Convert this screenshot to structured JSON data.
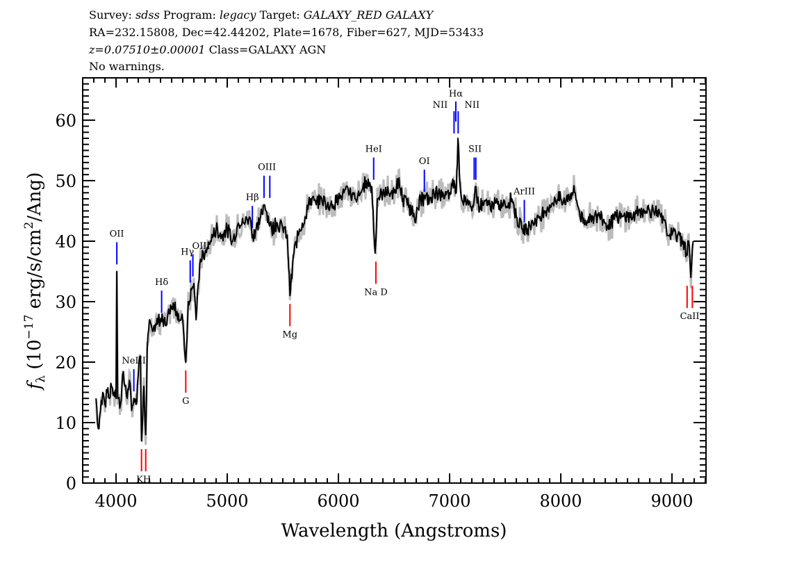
{
  "header": {
    "line1": {
      "survey_label": "Survey: ",
      "survey": "sdss",
      "program_label": " Program: ",
      "program": "legacy",
      "target_label": " Target: ",
      "target": "GALAXY_RED GALAXY"
    },
    "line2": "RA=232.15808, Dec=42.44202, Plate=1678, Fiber=627, MJD=53433",
    "line3": {
      "z": "z=0.07510±0.00001",
      "class": " Class=GALAXY AGN"
    },
    "line4": "No warnings."
  },
  "chart_data": {
    "type": "line",
    "xlabel": "Wavelength (Angstroms)",
    "ylabel": {
      "f": "f",
      "sub": "λ",
      "pre": " (10",
      "sup1": "−17",
      "mid": " erg/s/cm",
      "sup2": "2",
      "post": "/Ang)"
    },
    "xlim": [
      3700,
      9306
    ],
    "ylim": [
      0,
      67
    ],
    "xticks": [
      "4000",
      "5000",
      "6000",
      "7000",
      "8000",
      "9000"
    ],
    "yticks": [
      "0",
      "10",
      "20",
      "30",
      "40",
      "50",
      "60"
    ],
    "grid": false,
    "colors": {
      "spectrum": "#000000",
      "error": "#bbbbbb",
      "emission": "#0000ff",
      "absorption": "#ff0000"
    },
    "series": [
      {
        "x": [
          3820,
          3840,
          3860,
          3880,
          3900,
          3920,
          3940,
          3960,
          3980,
          4000,
          4007,
          4015,
          4040,
          4060,
          4080,
          4100,
          4120,
          4140,
          4160,
          4180,
          4200,
          4220,
          4229,
          4250,
          4267,
          4280,
          4300,
          4340,
          4380,
          4420,
          4450,
          4480,
          4520,
          4560,
          4600,
          4627,
          4650,
          4680,
          4700,
          4720,
          4740,
          4760,
          4800,
          4850,
          4900,
          4950,
          5000,
          5050,
          5100,
          5150,
          5200,
          5230,
          5260,
          5300,
          5330,
          5350,
          5400,
          5450,
          5500,
          5540,
          5564,
          5600,
          5650,
          5700,
          5750,
          5800,
          5850,
          5900,
          5950,
          6000,
          6050,
          6100,
          6150,
          6200,
          6250,
          6300,
          6330,
          6350,
          6400,
          6450,
          6500,
          6540,
          6580,
          6620,
          6660,
          6700,
          6740,
          6780,
          6820,
          6860,
          6900,
          6950,
          7000,
          7040,
          7060,
          7075,
          7100,
          7150,
          7200,
          7230,
          7260,
          7300,
          7350,
          7400,
          7450,
          7500,
          7560,
          7600,
          7650,
          7700,
          7750,
          7800,
          7850,
          7900,
          7950,
          8000,
          8050,
          8100,
          8130,
          8150,
          8200,
          8250,
          8300,
          8350,
          8400,
          8450,
          8500,
          8550,
          8600,
          8650,
          8700,
          8750,
          8800,
          8850,
          8900,
          8950,
          9000,
          9050,
          9100,
          9130,
          9150,
          9170,
          9190
        ],
        "y": [
          14,
          9,
          12,
          15,
          13,
          15,
          14,
          16,
          15,
          14,
          35,
          14,
          13,
          18,
          16,
          14,
          17,
          12,
          14,
          13,
          18,
          21,
          7,
          16,
          8,
          22,
          27,
          26,
          27,
          27,
          26,
          28,
          29,
          28,
          27,
          20,
          30,
          32,
          33,
          27,
          33,
          37,
          38,
          40,
          42,
          41,
          42,
          40,
          43,
          43,
          44,
          41,
          42,
          44,
          46,
          45,
          42,
          43,
          42,
          41,
          31,
          38,
          42,
          44,
          47,
          46,
          47,
          46,
          46,
          47,
          48,
          48,
          47,
          48,
          50,
          49,
          38,
          47,
          48,
          48,
          48,
          50,
          47,
          46,
          45,
          44,
          47,
          47,
          47,
          48,
          48,
          47,
          48,
          50,
          48,
          57,
          48,
          46,
          45,
          49,
          46,
          46,
          46,
          46,
          46,
          46,
          47,
          44,
          42,
          42,
          43,
          44,
          45,
          46,
          47,
          47,
          47,
          48,
          48,
          46,
          43,
          44,
          44,
          44,
          43,
          43,
          44,
          44,
          44,
          44,
          45,
          45,
          45,
          45,
          44,
          42,
          41,
          41,
          40,
          38,
          40,
          34,
          40
        ]
      }
    ],
    "lines": [
      {
        "label": "OII",
        "wl": [
          4007
        ],
        "kind": "emission"
      },
      {
        "label": "NeIII",
        "wl": [
          4160
        ],
        "kind": "emission"
      },
      {
        "label": "KH",
        "wl": [
          4229,
          4267
        ],
        "kind": "absorption"
      },
      {
        "label": "Hδ",
        "wl": [
          4410
        ],
        "kind": "emission"
      },
      {
        "label": "G",
        "wl": [
          4627
        ],
        "kind": "absorption"
      },
      {
        "label": "Hγ",
        "wl": [
          4667
        ],
        "kind": "emission"
      },
      {
        "label": "OIII",
        "wl": [
          4691
        ],
        "kind": "emission"
      },
      {
        "label": "Hβ",
        "wl": [
          5226
        ],
        "kind": "emission"
      },
      {
        "label": "OIII",
        "wl": [
          5331,
          5383
        ],
        "kind": "emission"
      },
      {
        "label": "Mg",
        "wl": [
          5564
        ],
        "kind": "absorption"
      },
      {
        "label": "HeI",
        "wl": [
          6317
        ],
        "kind": "emission"
      },
      {
        "label": "Na D",
        "wl": [
          6337
        ],
        "kind": "absorption"
      },
      {
        "label": "OI",
        "wl": [
          6773
        ],
        "kind": "emission"
      },
      {
        "label": "NII",
        "wl": [
          7040
        ],
        "kind": "emission"
      },
      {
        "label": "Hα",
        "wl": [
          7056
        ],
        "kind": "emission"
      },
      {
        "label": "NII",
        "wl": [
          7077
        ],
        "kind": "emission"
      },
      {
        "label": "SII",
        "wl": [
          7221,
          7236
        ],
        "kind": "emission"
      },
      {
        "label": "ArIII",
        "wl": [
          7672
        ],
        "kind": "emission"
      },
      {
        "label": "CaII",
        "wl": [
          9136,
          9183
        ],
        "kind": "absorption"
      }
    ]
  }
}
